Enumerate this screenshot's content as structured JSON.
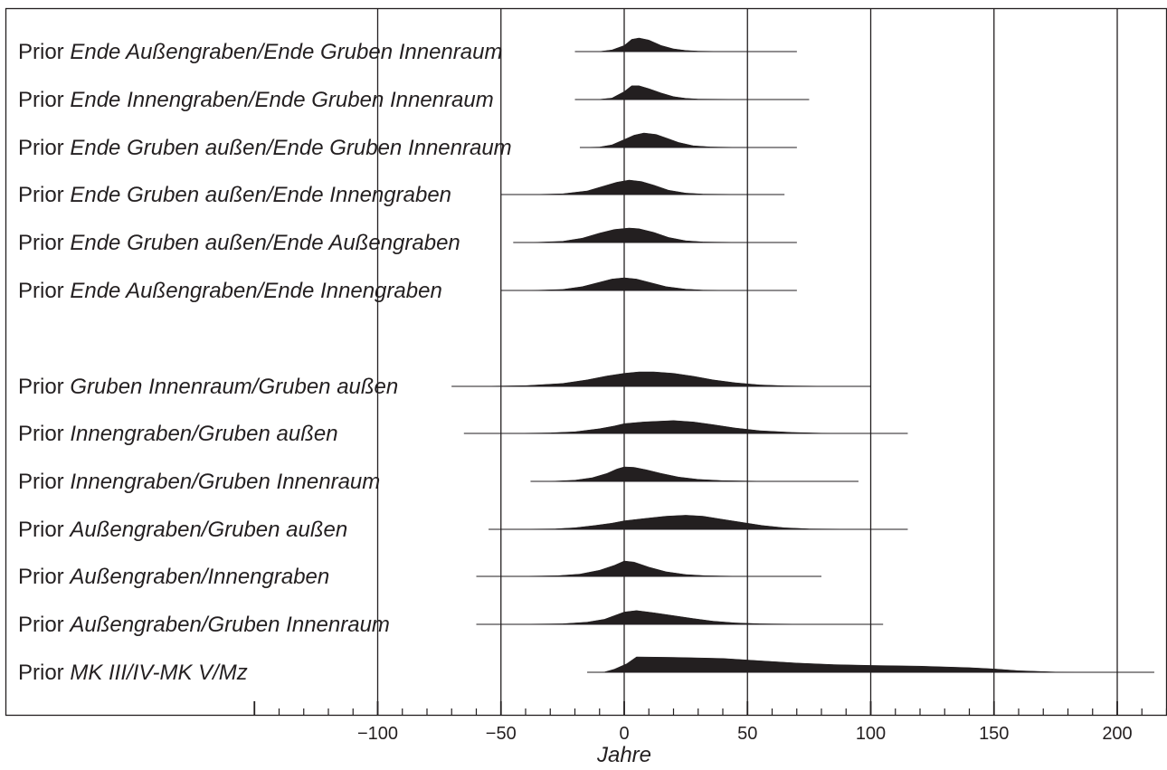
{
  "chart_data": {
    "type": "area",
    "xlabel": "Jahre",
    "xlim": [
      -151,
      220
    ],
    "x_ticks": [
      -100,
      -50,
      0,
      50,
      100,
      150,
      200
    ],
    "tick_labels": [
      "−100",
      "−50",
      "0",
      "50",
      "100",
      "150",
      "200"
    ],
    "gridlines": [
      -100,
      -50,
      0,
      50,
      100,
      150,
      200
    ],
    "grid": true,
    "ink_color": "#231f20",
    "rows": [
      {
        "prefix": "Prior",
        "name": "Ende Außengraben/Ende Gruben Innenraum",
        "range": [
          -20,
          70
        ],
        "density": [
          [
            -20,
            0
          ],
          [
            -10,
            0.01
          ],
          [
            -5,
            0.12
          ],
          [
            0,
            0.45
          ],
          [
            3,
            0.9
          ],
          [
            6,
            1
          ],
          [
            10,
            0.85
          ],
          [
            15,
            0.45
          ],
          [
            20,
            0.2
          ],
          [
            25,
            0.08
          ],
          [
            30,
            0.03
          ],
          [
            40,
            0.01
          ],
          [
            70,
            0
          ]
        ]
      },
      {
        "prefix": "Prior",
        "name": "Ende Innengraben/Ende Gruben Innenraum",
        "range": [
          -20,
          75
        ],
        "density": [
          [
            -20,
            0
          ],
          [
            -10,
            0.01
          ],
          [
            -5,
            0.1
          ],
          [
            0,
            0.55
          ],
          [
            3,
            0.95
          ],
          [
            6,
            0.95
          ],
          [
            10,
            0.75
          ],
          [
            15,
            0.45
          ],
          [
            20,
            0.2
          ],
          [
            25,
            0.08
          ],
          [
            30,
            0.03
          ],
          [
            45,
            0.01
          ],
          [
            75,
            0
          ]
        ]
      },
      {
        "prefix": "Prior",
        "name": "Ende Gruben außen/Ende Gruben Innenraum",
        "range": [
          -18,
          70
        ],
        "density": [
          [
            -18,
            0
          ],
          [
            -10,
            0.03
          ],
          [
            -5,
            0.18
          ],
          [
            0,
            0.55
          ],
          [
            4,
            0.85
          ],
          [
            8,
            1
          ],
          [
            13,
            0.9
          ],
          [
            18,
            0.6
          ],
          [
            22,
            0.35
          ],
          [
            28,
            0.12
          ],
          [
            35,
            0.04
          ],
          [
            45,
            0.01
          ],
          [
            70,
            0
          ]
        ]
      },
      {
        "prefix": "Prior",
        "name": "Ende Gruben außen/Ende Innengraben",
        "range": [
          -50,
          65
        ],
        "density": [
          [
            -50,
            0
          ],
          [
            -35,
            0.01
          ],
          [
            -25,
            0.05
          ],
          [
            -15,
            0.25
          ],
          [
            -8,
            0.6
          ],
          [
            -3,
            0.85
          ],
          [
            2,
            1
          ],
          [
            7,
            0.9
          ],
          [
            12,
            0.65
          ],
          [
            18,
            0.3
          ],
          [
            25,
            0.1
          ],
          [
            32,
            0.03
          ],
          [
            45,
            0.01
          ],
          [
            65,
            0
          ]
        ]
      },
      {
        "prefix": "Prior",
        "name": "Ende Gruben außen/Ende Außengraben",
        "range": [
          -45,
          70
        ],
        "density": [
          [
            -45,
            0
          ],
          [
            -35,
            0.02
          ],
          [
            -25,
            0.08
          ],
          [
            -17,
            0.3
          ],
          [
            -10,
            0.65
          ],
          [
            -4,
            0.9
          ],
          [
            2,
            1
          ],
          [
            6,
            0.95
          ],
          [
            12,
            0.7
          ],
          [
            18,
            0.35
          ],
          [
            25,
            0.12
          ],
          [
            32,
            0.04
          ],
          [
            45,
            0.01
          ],
          [
            70,
            0
          ]
        ]
      },
      {
        "prefix": "Prior",
        "name": "Ende Außengraben/Ende Innengraben",
        "range": [
          -50,
          70
        ],
        "density": [
          [
            -50,
            0
          ],
          [
            -35,
            0.02
          ],
          [
            -25,
            0.08
          ],
          [
            -17,
            0.3
          ],
          [
            -10,
            0.65
          ],
          [
            -5,
            0.9
          ],
          [
            0,
            1
          ],
          [
            5,
            0.9
          ],
          [
            11,
            0.6
          ],
          [
            17,
            0.3
          ],
          [
            25,
            0.1
          ],
          [
            32,
            0.03
          ],
          [
            45,
            0.01
          ],
          [
            70,
            0
          ]
        ]
      },
      {
        "prefix": "Prior",
        "name": "Gruben Innenraum/Gruben außen",
        "range": [
          -70,
          100
        ],
        "density": [
          [
            -70,
            0
          ],
          [
            -55,
            0.01
          ],
          [
            -40,
            0.05
          ],
          [
            -25,
            0.2
          ],
          [
            -15,
            0.45
          ],
          [
            -7,
            0.72
          ],
          [
            0,
            0.9
          ],
          [
            6,
            1
          ],
          [
            12,
            1
          ],
          [
            20,
            0.9
          ],
          [
            28,
            0.7
          ],
          [
            36,
            0.45
          ],
          [
            45,
            0.25
          ],
          [
            55,
            0.1
          ],
          [
            65,
            0.04
          ],
          [
            80,
            0.01
          ],
          [
            100,
            0
          ]
        ]
      },
      {
        "prefix": "Prior",
        "name": "Innengraben/Gruben außen",
        "range": [
          -65,
          115
        ],
        "density": [
          [
            -65,
            0
          ],
          [
            -45,
            0.01
          ],
          [
            -30,
            0.04
          ],
          [
            -20,
            0.12
          ],
          [
            -10,
            0.35
          ],
          [
            -4,
            0.55
          ],
          [
            0,
            0.72
          ],
          [
            8,
            0.85
          ],
          [
            20,
            0.95
          ],
          [
            28,
            0.85
          ],
          [
            36,
            0.65
          ],
          [
            45,
            0.4
          ],
          [
            55,
            0.2
          ],
          [
            68,
            0.07
          ],
          [
            80,
            0.02
          ],
          [
            95,
            0.01
          ],
          [
            115,
            0
          ]
        ]
      },
      {
        "prefix": "Prior",
        "name": "Innengraben/Gruben Innenraum",
        "range": [
          -38,
          95
        ],
        "density": [
          [
            -38,
            0
          ],
          [
            -28,
            0.02
          ],
          [
            -20,
            0.08
          ],
          [
            -13,
            0.25
          ],
          [
            -7,
            0.55
          ],
          [
            -3,
            0.85
          ],
          [
            0,
            1
          ],
          [
            4,
            0.97
          ],
          [
            9,
            0.8
          ],
          [
            15,
            0.55
          ],
          [
            22,
            0.3
          ],
          [
            30,
            0.14
          ],
          [
            40,
            0.05
          ],
          [
            55,
            0.01
          ],
          [
            95,
            0
          ]
        ]
      },
      {
        "prefix": "Prior",
        "name": "Außengraben/Gruben außen",
        "range": [
          -55,
          115
        ],
        "density": [
          [
            -55,
            0
          ],
          [
            -40,
            0.01
          ],
          [
            -28,
            0.03
          ],
          [
            -20,
            0.1
          ],
          [
            -12,
            0.25
          ],
          [
            -5,
            0.4
          ],
          [
            0,
            0.55
          ],
          [
            8,
            0.7
          ],
          [
            17,
            0.85
          ],
          [
            25,
            0.92
          ],
          [
            32,
            0.85
          ],
          [
            40,
            0.65
          ],
          [
            48,
            0.45
          ],
          [
            56,
            0.25
          ],
          [
            65,
            0.1
          ],
          [
            75,
            0.03
          ],
          [
            90,
            0.01
          ],
          [
            115,
            0
          ]
        ]
      },
      {
        "prefix": "Prior",
        "name": "Außengraben/Innengraben",
        "range": [
          -60,
          80
        ],
        "density": [
          [
            -60,
            0
          ],
          [
            -40,
            0.01
          ],
          [
            -27,
            0.04
          ],
          [
            -18,
            0.15
          ],
          [
            -10,
            0.4
          ],
          [
            -4,
            0.72
          ],
          [
            0,
            1
          ],
          [
            4,
            0.93
          ],
          [
            10,
            0.6
          ],
          [
            17,
            0.3
          ],
          [
            25,
            0.12
          ],
          [
            33,
            0.04
          ],
          [
            45,
            0.01
          ],
          [
            80,
            0
          ]
        ]
      },
      {
        "prefix": "Prior",
        "name": "Außengraben/Gruben Innenraum",
        "range": [
          -60,
          105
        ],
        "density": [
          [
            -60,
            0
          ],
          [
            -40,
            0.01
          ],
          [
            -25,
            0.04
          ],
          [
            -15,
            0.15
          ],
          [
            -8,
            0.35
          ],
          [
            -4,
            0.6
          ],
          [
            0,
            0.85
          ],
          [
            5,
            0.95
          ],
          [
            12,
            0.8
          ],
          [
            20,
            0.6
          ],
          [
            28,
            0.4
          ],
          [
            36,
            0.22
          ],
          [
            45,
            0.1
          ],
          [
            55,
            0.04
          ],
          [
            70,
            0.01
          ],
          [
            105,
            0
          ]
        ]
      },
      {
        "prefix": "Prior",
        "name": "MK III/IV-MK V/Mz",
        "range": [
          -15,
          215
        ],
        "density": [
          [
            -15,
            0
          ],
          [
            -8,
            0.02
          ],
          [
            -4,
            0.2
          ],
          [
            1,
            0.55
          ],
          [
            5,
            1
          ],
          [
            20,
            0.97
          ],
          [
            40,
            0.9
          ],
          [
            55,
            0.75
          ],
          [
            70,
            0.6
          ],
          [
            85,
            0.5
          ],
          [
            100,
            0.45
          ],
          [
            120,
            0.4
          ],
          [
            140,
            0.3
          ],
          [
            150,
            0.22
          ],
          [
            160,
            0.1
          ],
          [
            175,
            0.02
          ],
          [
            190,
            0.01
          ],
          [
            215,
            0
          ]
        ]
      }
    ]
  }
}
